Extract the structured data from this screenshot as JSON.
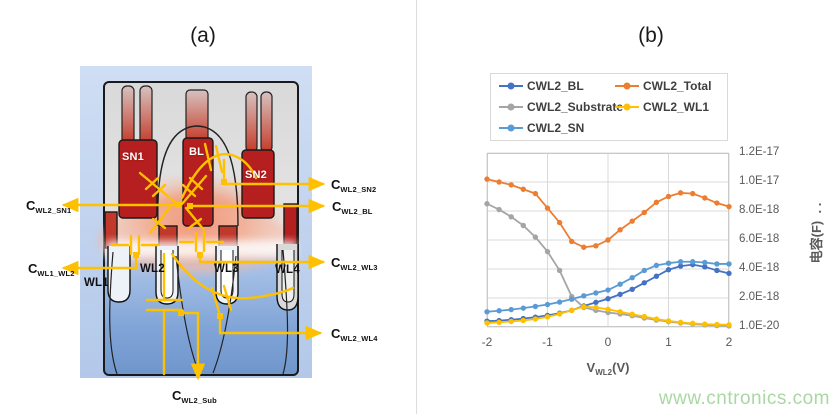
{
  "figure": {
    "panel_a_title": "(a)",
    "panel_b_title": "(b)",
    "watermark": "www.cntronics.com"
  },
  "panel_a": {
    "regions": {
      "sn1": "SN1",
      "bl": "BL",
      "sn2": "SN2",
      "wl1": "WL1",
      "wl2": "WL2",
      "wl3": "WL3",
      "wl4": "WL4"
    },
    "capacitances": {
      "wl2_sn1": {
        "base": "C",
        "sub": "WL2_SN1"
      },
      "wl1_wl2": {
        "base": "C",
        "sub": "WL1_WL2"
      },
      "wl2_sn2": {
        "base": "C",
        "sub": "WL2_SN2"
      },
      "wl2_bl": {
        "base": "C",
        "sub": "WL2_BL"
      },
      "wl2_wl3": {
        "base": "C",
        "sub": "WL2_WL3"
      },
      "wl2_wl4": {
        "base": "C",
        "sub": "WL2_WL4"
      },
      "wl2_sub": {
        "base": "C",
        "sub": "WL2_Sub"
      }
    },
    "colors": {
      "overlay_yellow": "#FFC000",
      "pillar_red": "#B51F1F",
      "canvas_blue": "#BDD3EE",
      "substrate_blue": "#7FA3D6"
    }
  },
  "chart_data": {
    "type": "line",
    "title": "",
    "xlabel": "V_WL2(V)",
    "xlabel_parts": {
      "base": "V",
      "sub": "WL2",
      "suffix": "(V)"
    },
    "ylabel": "电容(F)",
    "ylabel_suffix": ". .",
    "unit": "F",
    "grid": true,
    "legend_position": "top",
    "xlim": [
      -2,
      2
    ],
    "xticks": [
      -2,
      -1,
      0,
      1,
      2
    ],
    "ymin": 1e-20,
    "ymax": 1.2e-17,
    "ytick_labels": [
      "1.2E-17",
      "1.0E-17",
      "8.0E-18",
      "6.0E-18",
      "4.0E-18",
      "2.0E-18",
      "1.0E-20"
    ],
    "x": [
      -2,
      -1.8,
      -1.6,
      -1.4,
      -1.2,
      -1,
      -0.8,
      -0.6,
      -0.4,
      -0.2,
      0,
      0.2,
      0.4,
      0.6,
      0.8,
      1,
      1.2,
      1.4,
      1.6,
      1.8,
      2
    ],
    "series": [
      {
        "name": "CWL2_BL",
        "color": "#4472C4",
        "values": [
          4e-19,
          4.4e-19,
          5e-19,
          5.8e-19,
          6.8e-19,
          8e-19,
          9.5e-19,
          1.15e-18,
          1.45e-18,
          1.7e-18,
          1.95e-18,
          2.25e-18,
          2.6e-18,
          3.05e-18,
          3.5e-18,
          3.95e-18,
          4.2e-18,
          4.3e-18,
          4.15e-18,
          3.9e-18,
          3.7e-18
        ]
      },
      {
        "name": "CWL2_Total",
        "color": "#ED7D31",
        "values": [
          1.02e-17,
          1e-17,
          9.8e-18,
          9.5e-18,
          9.2e-18,
          8.2e-18,
          7.2e-18,
          5.9e-18,
          5.5e-18,
          5.6e-18,
          6e-18,
          6.7e-18,
          7.3e-18,
          7.9e-18,
          8.6e-18,
          9e-18,
          9.25e-18,
          9.2e-18,
          8.9e-18,
          8.55e-18,
          8.3e-18
        ]
      },
      {
        "name": "CWL2_Substrate",
        "color": "#A5A5A5",
        "values": [
          8.5e-18,
          8.1e-18,
          7.6e-18,
          7e-18,
          6.2e-18,
          5.2e-18,
          3.9e-18,
          2.1e-18,
          1.35e-18,
          1.15e-18,
          1e-18,
          9e-19,
          7.8e-19,
          6.2e-19,
          4.8e-19,
          3.7e-19,
          2.8e-19,
          2e-19,
          1.5e-19,
          1e-19,
          7e-20
        ]
      },
      {
        "name": "CWL2_WL1",
        "color": "#FFC000",
        "values": [
          2.8e-19,
          3.2e-19,
          3.8e-19,
          4.5e-19,
          5.5e-19,
          7e-19,
          9e-19,
          1.15e-18,
          1.4e-18,
          1.35e-18,
          1.22e-18,
          1.05e-18,
          8.8e-19,
          7.2e-19,
          5.5e-19,
          4.2e-19,
          3.2e-19,
          2.5e-19,
          2e-19,
          1.7e-19,
          1.5e-19
        ]
      },
      {
        "name": "CWL2_SN",
        "color": "#5B9BD5",
        "values": [
          1.05e-18,
          1.12e-18,
          1.2e-18,
          1.3e-18,
          1.42e-18,
          1.55e-18,
          1.72e-18,
          1.92e-18,
          2.15e-18,
          2.35e-18,
          2.55e-18,
          2.95e-18,
          3.4e-18,
          3.9e-18,
          4.25e-18,
          4.4e-18,
          4.5e-18,
          4.5e-18,
          4.45e-18,
          4.35e-18,
          4.35e-18
        ]
      }
    ]
  }
}
